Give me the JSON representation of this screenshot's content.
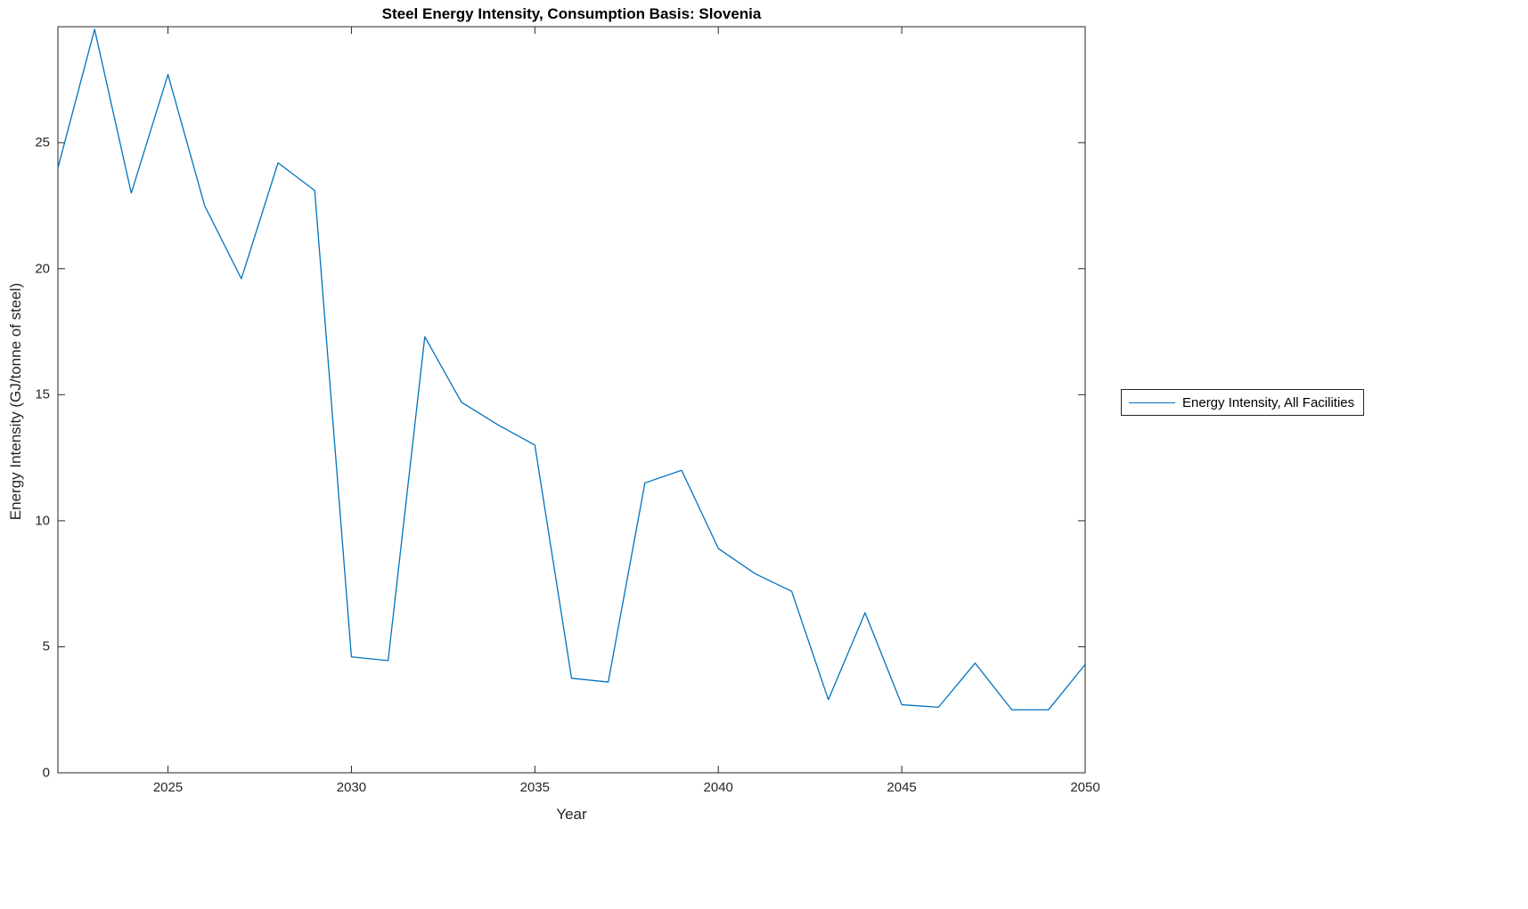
{
  "chart_data": {
    "type": "line",
    "title": "Steel Energy Intensity, Consumption Basis: Slovenia",
    "xlabel": "Year",
    "ylabel": "Energy Intensity (GJ/tonne of steel)",
    "x": [
      2022,
      2023,
      2024,
      2025,
      2026,
      2027,
      2028,
      2029,
      2030,
      2031,
      2032,
      2033,
      2034,
      2035,
      2036,
      2037,
      2038,
      2039,
      2040,
      2041,
      2042,
      2043,
      2044,
      2045,
      2046,
      2047,
      2048,
      2049,
      2050
    ],
    "series": [
      {
        "name": "Energy Intensity, All Facilities",
        "color": "#0072BD",
        "values": [
          24.0,
          29.5,
          23.0,
          27.7,
          22.5,
          19.6,
          24.2,
          23.1,
          4.6,
          4.45,
          17.3,
          14.7,
          13.8,
          13.0,
          3.75,
          3.6,
          11.5,
          12.0,
          8.9,
          7.9,
          7.2,
          2.9,
          6.35,
          2.7,
          2.6,
          4.35,
          2.5,
          2.5,
          4.3
        ]
      }
    ],
    "xlim": [
      2022,
      2050
    ],
    "ylim": [
      0,
      29.6
    ],
    "xticks": [
      2025,
      2030,
      2035,
      2040,
      2045,
      2050
    ],
    "yticks": [
      0,
      5,
      10,
      15,
      20,
      25
    ],
    "grid": false,
    "legend_position": "right-outside",
    "axis_color": "#262626",
    "background_color": "#ffffff"
  }
}
